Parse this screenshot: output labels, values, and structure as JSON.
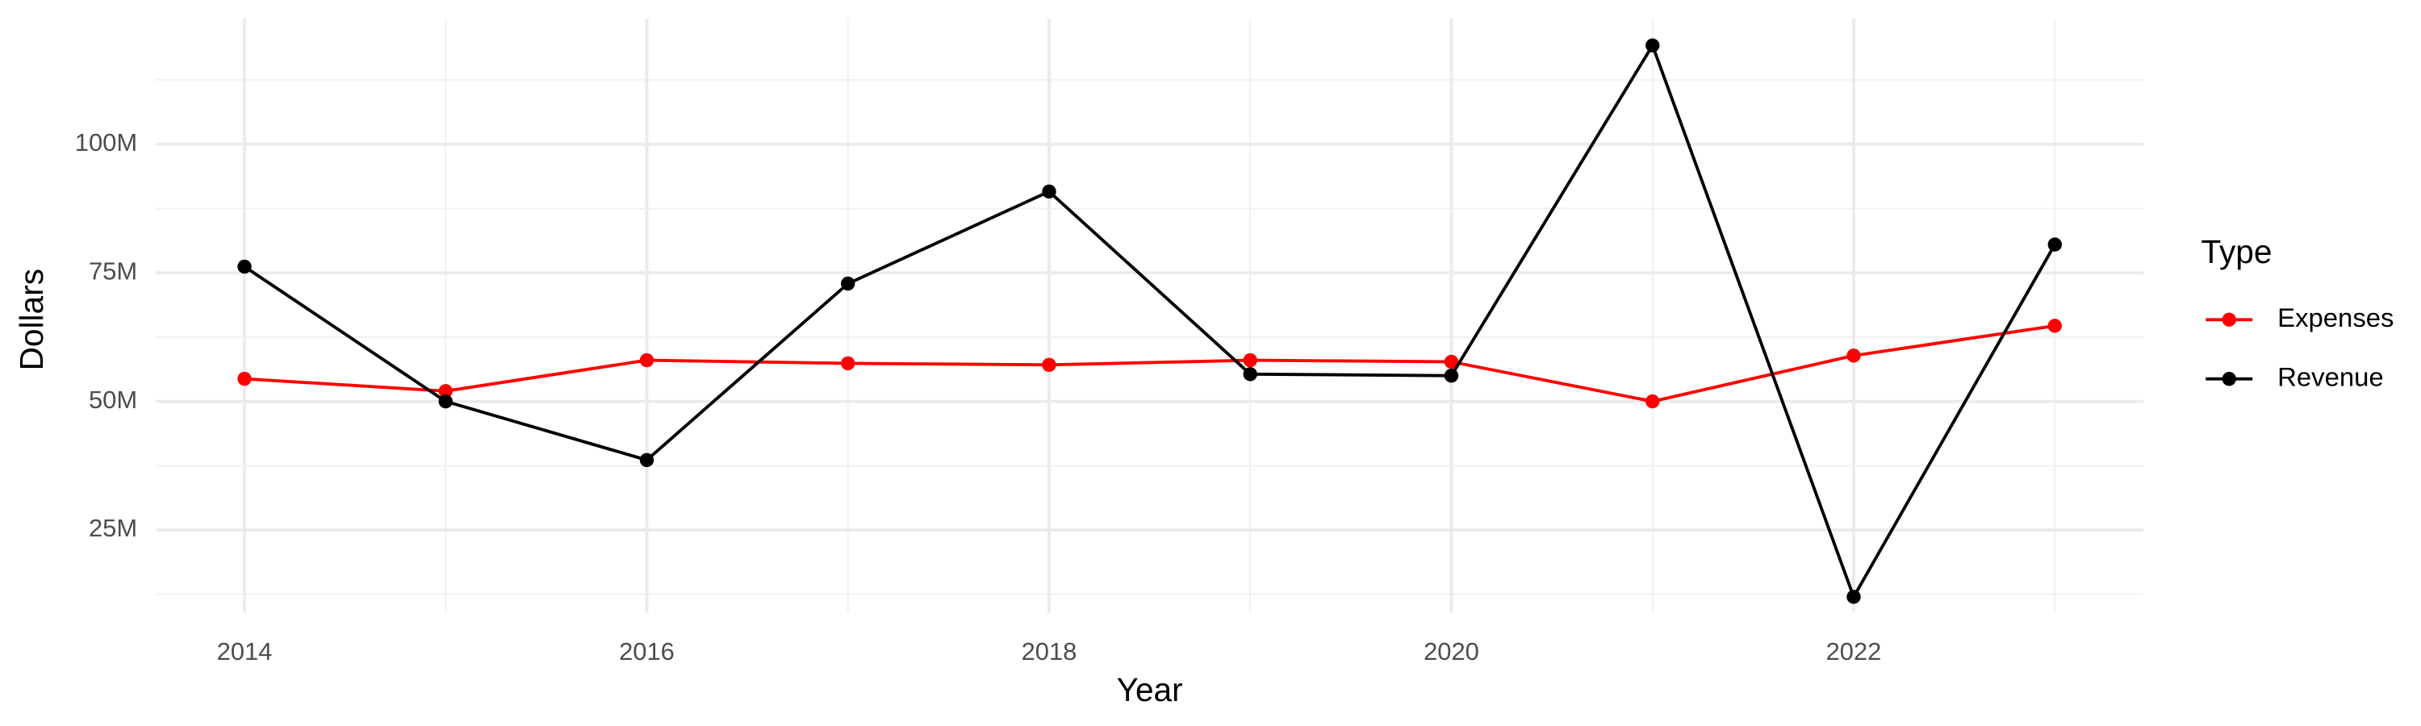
{
  "chart_data": {
    "type": "line",
    "x_label": "Year",
    "y_label": "Dollars",
    "x": [
      2014,
      2015,
      2016,
      2017,
      2018,
      2019,
      2020,
      2021,
      2022,
      2023
    ],
    "series": [
      {
        "name": "Expenses",
        "color": "#ff0000",
        "values": [
          54400000,
          52000000,
          58000000,
          57400000,
          57100000,
          58000000,
          57700000,
          50000000,
          58900000,
          64700000
        ]
      },
      {
        "name": "Revenue",
        "color": "#000000",
        "values": [
          76200000,
          50000000,
          38600000,
          72900000,
          90800000,
          55300000,
          55000000,
          119200000,
          12000000,
          80500000
        ]
      }
    ],
    "xlim": [
      2013.56,
      2023.44
    ],
    "xticks": [
      2014,
      2016,
      2018,
      2020,
      2022
    ],
    "ylim": [
      8900000,
      124400000
    ],
    "yticks": [
      {
        "value": 25000000,
        "label": "25M"
      },
      {
        "value": 50000000,
        "label": "50M"
      },
      {
        "value": 75000000,
        "label": "75M"
      },
      {
        "value": 100000000,
        "label": "100M"
      }
    ],
    "grid": true,
    "legend_title": "Type",
    "legend_position": "right"
  }
}
